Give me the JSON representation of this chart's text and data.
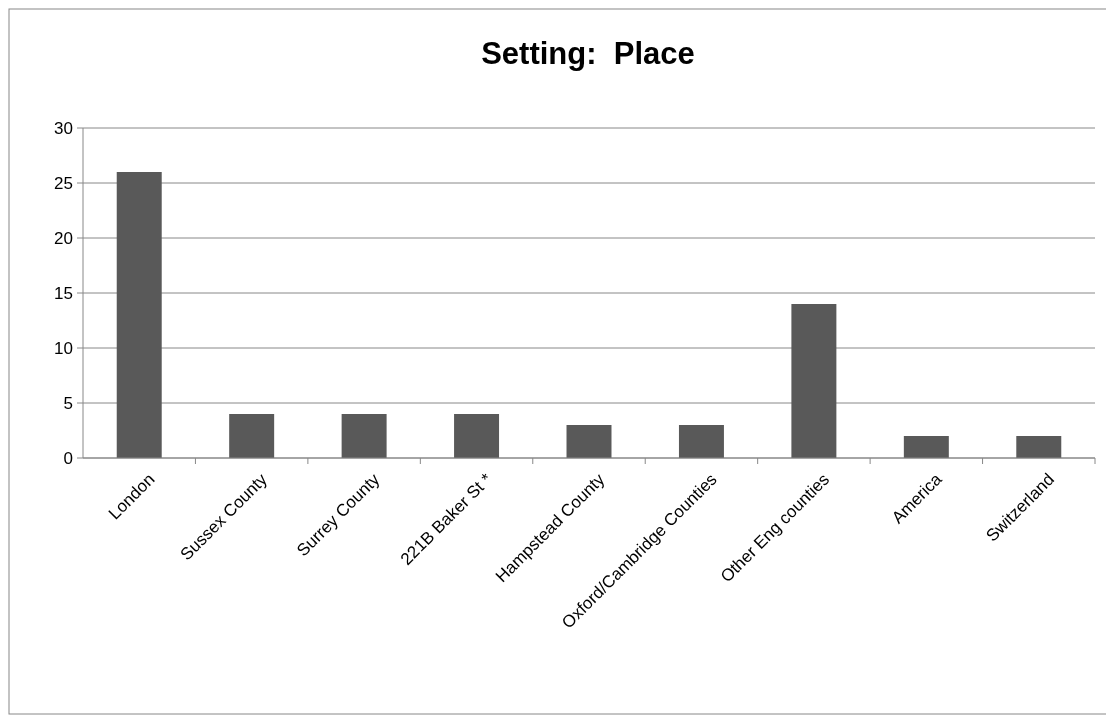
{
  "chart_data": {
    "type": "bar",
    "title": "Setting:  Place",
    "categories": [
      "London",
      "Sussex County",
      "Surrey County",
      "221B Baker St *",
      "Hampstead County",
      "Oxford/Cambridge Counties",
      "Other Eng counties",
      "America",
      "Switzerland"
    ],
    "values": [
      26,
      4,
      4,
      4,
      3,
      3,
      14,
      2,
      2
    ],
    "color": "#595959",
    "ylim": [
      0,
      30
    ],
    "yticks": [
      0,
      5,
      10,
      15,
      20,
      25,
      30
    ],
    "grid": "y"
  }
}
